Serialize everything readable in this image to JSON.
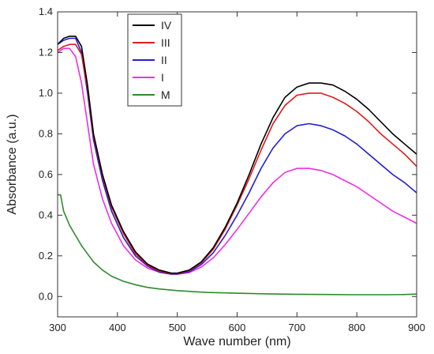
{
  "chart_data": {
    "type": "line",
    "xlabel": "Wave number (nm)",
    "ylabel": "Absorbance (a.u.)",
    "xlim": [
      300,
      900
    ],
    "ylim": [
      -0.1,
      1.4
    ],
    "xticks": [
      300,
      400,
      500,
      600,
      700,
      800,
      900
    ],
    "yticks": [
      0.0,
      0.2,
      0.4,
      0.6,
      0.8,
      1.0,
      1.2,
      1.4
    ],
    "ytick_labels": [
      "0.0",
      "0.2",
      "0.4",
      "0.6",
      "0.8",
      "1.0",
      "1.2",
      "1.4"
    ],
    "grid": false,
    "legend_position": "top-left",
    "series": [
      {
        "name": "IV",
        "color": "#000000",
        "x": [
          300,
          310,
          320,
          330,
          340,
          350,
          360,
          375,
          390,
          410,
          430,
          450,
          470,
          490,
          500,
          520,
          540,
          560,
          580,
          600,
          620,
          640,
          660,
          680,
          700,
          720,
          740,
          760,
          780,
          800,
          820,
          840,
          860,
          880,
          900
        ],
        "y": [
          1.24,
          1.27,
          1.28,
          1.28,
          1.23,
          1.04,
          0.8,
          0.6,
          0.45,
          0.32,
          0.22,
          0.16,
          0.13,
          0.115,
          0.115,
          0.13,
          0.17,
          0.24,
          0.34,
          0.46,
          0.6,
          0.75,
          0.88,
          0.98,
          1.03,
          1.05,
          1.05,
          1.04,
          1.01,
          0.97,
          0.92,
          0.86,
          0.8,
          0.75,
          0.7
        ]
      },
      {
        "name": "III",
        "color": "#e41a1c",
        "x": [
          300,
          310,
          320,
          330,
          340,
          350,
          360,
          375,
          390,
          410,
          430,
          450,
          470,
          490,
          500,
          520,
          540,
          560,
          580,
          600,
          620,
          640,
          660,
          680,
          700,
          720,
          740,
          760,
          780,
          800,
          820,
          840,
          860,
          880,
          900
        ],
        "y": [
          1.21,
          1.23,
          1.24,
          1.24,
          1.19,
          1.02,
          0.79,
          0.59,
          0.44,
          0.31,
          0.21,
          0.155,
          0.125,
          0.112,
          0.112,
          0.127,
          0.165,
          0.232,
          0.33,
          0.45,
          0.58,
          0.72,
          0.85,
          0.94,
          0.99,
          1.0,
          1.0,
          0.98,
          0.95,
          0.91,
          0.86,
          0.8,
          0.75,
          0.7,
          0.64
        ]
      },
      {
        "name": "II",
        "color": "#1f1fd1",
        "x": [
          300,
          310,
          320,
          330,
          340,
          350,
          360,
          375,
          390,
          410,
          430,
          450,
          470,
          490,
          500,
          520,
          540,
          560,
          580,
          600,
          620,
          640,
          660,
          680,
          700,
          720,
          740,
          760,
          780,
          800,
          820,
          840,
          860,
          880,
          900
        ],
        "y": [
          1.24,
          1.26,
          1.27,
          1.27,
          1.2,
          1.0,
          0.77,
          0.57,
          0.42,
          0.29,
          0.2,
          0.15,
          0.12,
          0.11,
          0.11,
          0.122,
          0.157,
          0.215,
          0.3,
          0.4,
          0.51,
          0.63,
          0.73,
          0.8,
          0.84,
          0.85,
          0.84,
          0.82,
          0.79,
          0.75,
          0.7,
          0.65,
          0.6,
          0.56,
          0.51
        ]
      },
      {
        "name": "I",
        "color": "#ee2ee8",
        "x": [
          300,
          310,
          320,
          330,
          340,
          350,
          360,
          375,
          390,
          410,
          430,
          450,
          470,
          490,
          500,
          520,
          540,
          560,
          580,
          600,
          620,
          640,
          660,
          680,
          700,
          720,
          740,
          760,
          780,
          800,
          820,
          840,
          860,
          880,
          900
        ],
        "y": [
          1.2,
          1.22,
          1.22,
          1.18,
          1.05,
          0.85,
          0.65,
          0.48,
          0.36,
          0.25,
          0.18,
          0.14,
          0.12,
          0.11,
          0.11,
          0.118,
          0.145,
          0.19,
          0.255,
          0.33,
          0.41,
          0.49,
          0.56,
          0.61,
          0.63,
          0.63,
          0.62,
          0.6,
          0.57,
          0.54,
          0.5,
          0.46,
          0.42,
          0.39,
          0.36
        ]
      },
      {
        "name": "M",
        "color": "#2e8b2e",
        "x": [
          300,
          305,
          310,
          320,
          330,
          340,
          350,
          360,
          375,
          390,
          410,
          430,
          450,
          470,
          500,
          550,
          600,
          650,
          700,
          750,
          800,
          850,
          880,
          900
        ],
        "y": [
          0.5,
          0.5,
          0.42,
          0.35,
          0.3,
          0.25,
          0.21,
          0.17,
          0.13,
          0.1,
          0.075,
          0.058,
          0.045,
          0.037,
          0.029,
          0.02,
          0.016,
          0.013,
          0.011,
          0.01,
          0.009,
          0.009,
          0.01,
          0.012
        ]
      }
    ]
  }
}
